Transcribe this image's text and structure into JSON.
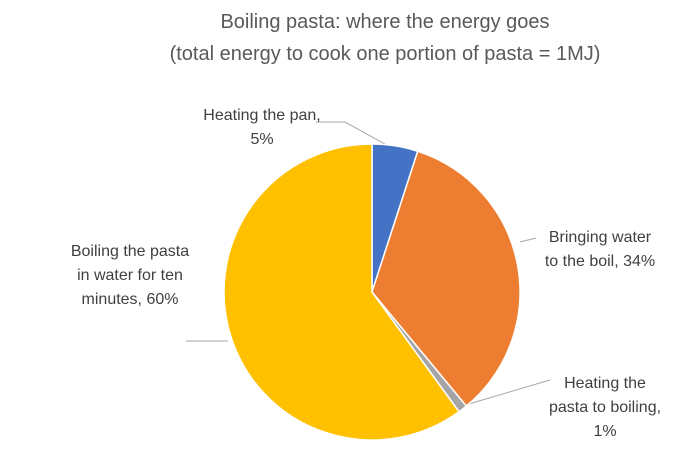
{
  "chart_data": {
    "type": "pie",
    "title": "Boiling pasta: where the energy goes",
    "subtitle": "(total energy to cook one portion of pasta = 1MJ)",
    "categories": [
      "Heating the pan",
      "Bringing water to the boil",
      "Heating the pasta to boiling",
      "Boiling the pasta in water for ten minutes"
    ],
    "values": [
      5,
      34,
      1,
      60
    ],
    "value_labels": [
      "Heating the pan, 5%",
      "Bringing water to the boil, 34%",
      "Heating the pasta to boiling, 1%",
      "Boiling the pasta in water for ten minutes, 60%"
    ],
    "colors": [
      "#4472c4",
      "#ed7d31",
      "#a5a5a5",
      "#ffc000"
    ]
  }
}
